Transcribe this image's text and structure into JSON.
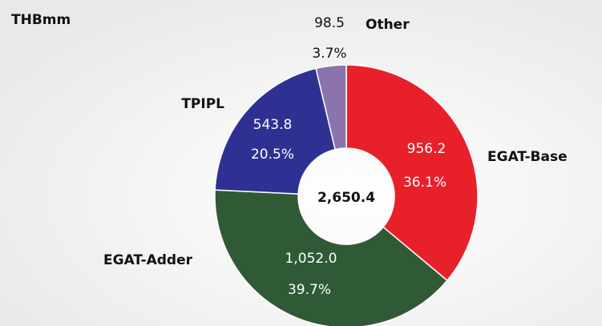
{
  "chart_data": {
    "type": "donut",
    "title": "THBmm",
    "categories": [
      "EGAT-Base",
      "EGAT-Adder",
      "TPIPL",
      "Other"
    ],
    "values": [
      956.2,
      1052.0,
      543.8,
      98.5
    ],
    "value_labels": [
      "956.2",
      "1,052.0",
      "543.8",
      "98.5"
    ],
    "percents": [
      36.1,
      39.7,
      20.5,
      3.7
    ],
    "percent_labels": [
      "36.1%",
      "39.7%",
      "20.5%",
      "3.7%"
    ],
    "colors": [
      "#e8202a",
      "#2f5a35",
      "#2e3192",
      "#8b74ae"
    ],
    "total": 2650.4,
    "total_label": "2,650.4"
  }
}
